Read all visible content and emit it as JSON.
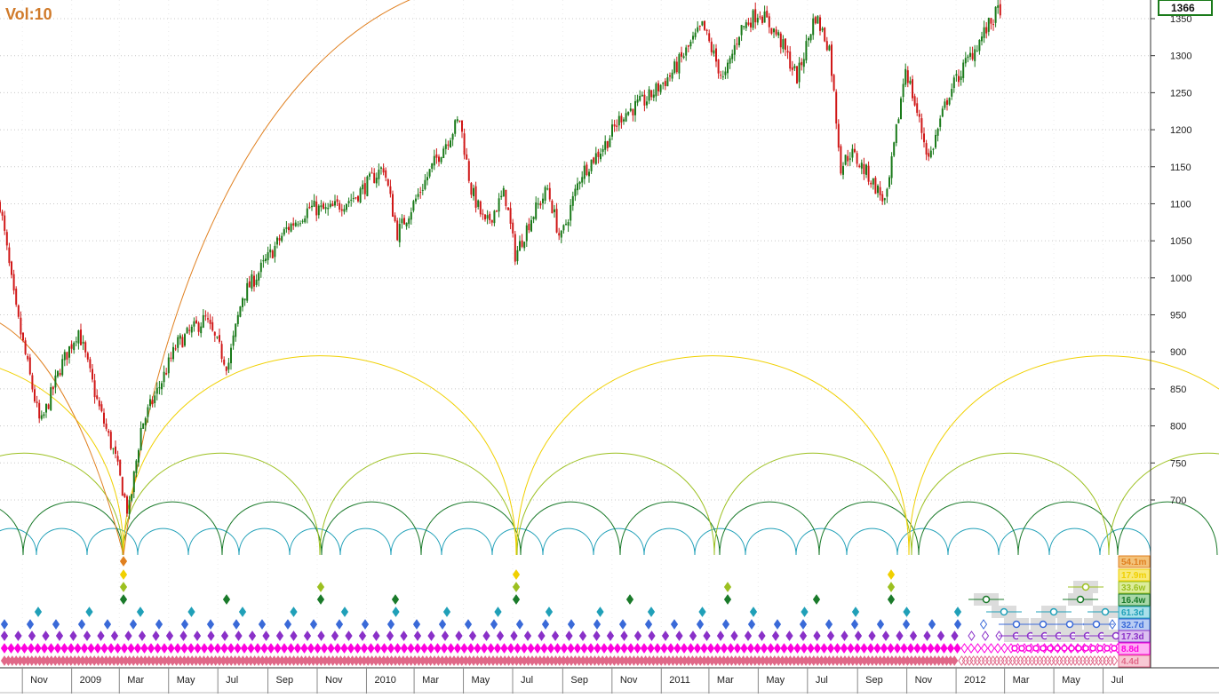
{
  "header": {
    "vol_label": "Vol:10"
  },
  "price_badge": "1366",
  "colors": {
    "up": "#1a7a1a",
    "down": "#d01818",
    "grid": "#c8c8c8",
    "axis": "#333333"
  },
  "cycles": [
    {
      "label": "54.1m",
      "color": "#e08020",
      "bg": "#f3c27a"
    },
    {
      "label": "17.9m",
      "color": "#f0d000",
      "bg": "#f8ea7a"
    },
    {
      "label": "33.6w",
      "color": "#9cc020",
      "bg": "#dcec9c"
    },
    {
      "label": "16.4w",
      "color": "#1a7a2a",
      "bg": "#a8d8a8"
    },
    {
      "label": "61.3d",
      "color": "#20a0b8",
      "bg": "#a8e0ea"
    },
    {
      "label": "32.7d",
      "color": "#3a6ad8",
      "bg": "#b8ccf4"
    },
    {
      "label": "17.3d",
      "color": "#8a30c8",
      "bg": "#dcc0f0"
    },
    {
      "label": "8.8d",
      "color": "#ff00e0",
      "bg": "#ffb0f4"
    },
    {
      "label": "4.4d",
      "color": "#e06888",
      "bg": "#f8c8d4"
    }
  ],
  "chart_data": {
    "type": "candlestick",
    "title": "",
    "xlabel": "",
    "ylabel": "",
    "ylim": [
      650,
      1370
    ],
    "y_ticks": [
      700,
      750,
      800,
      850,
      900,
      950,
      1000,
      1050,
      1100,
      1150,
      1200,
      1250,
      1300,
      1350
    ],
    "x_ticks": [
      "Nov",
      "2009",
      "Mar",
      "May",
      "Jul",
      "Sep",
      "Nov",
      "2010",
      "Mar",
      "May",
      "Jul",
      "Sep",
      "Nov",
      "2011",
      "Mar",
      "May",
      "Jul",
      "Sep",
      "Nov",
      "2012",
      "Mar",
      "May",
      "Jul"
    ],
    "x_range": [
      "2008-10-01",
      "2012-08-20"
    ],
    "last_price": 1366,
    "close_series": {
      "dates": [
        "2008-10-01",
        "2008-10-20",
        "2008-11-20",
        "2008-12-15",
        "2009-01-06",
        "2009-01-30",
        "2009-02-20",
        "2009-03-09",
        "2009-03-25",
        "2009-04-15",
        "2009-05-08",
        "2009-06-12",
        "2009-07-10",
        "2009-07-28",
        "2009-08-25",
        "2009-09-20",
        "2009-10-20",
        "2009-11-10",
        "2009-12-15",
        "2010-01-19",
        "2010-02-05",
        "2010-02-25",
        "2010-03-25",
        "2010-04-23",
        "2010-05-07",
        "2010-05-25",
        "2010-06-18",
        "2010-07-01",
        "2010-07-20",
        "2010-08-10",
        "2010-08-26",
        "2010-09-20",
        "2010-10-20",
        "2010-11-10",
        "2010-12-10",
        "2011-01-10",
        "2011-02-18",
        "2011-03-16",
        "2011-04-05",
        "2011-04-29",
        "2011-05-23",
        "2011-06-15",
        "2011-07-07",
        "2011-07-25",
        "2011-08-08",
        "2011-08-20",
        "2011-09-10",
        "2011-10-03",
        "2011-10-27",
        "2011-11-25",
        "2011-12-20",
        "2012-01-10",
        "2012-02-01",
        "2012-02-22"
      ],
      "values": [
        1100,
        960,
        800,
        880,
        930,
        830,
        760,
        680,
        800,
        850,
        910,
        945,
        880,
        975,
        1020,
        1065,
        1095,
        1090,
        1110,
        1150,
        1060,
        1100,
        1160,
        1215,
        1120,
        1070,
        1115,
        1030,
        1080,
        1120,
        1050,
        1140,
        1180,
        1220,
        1240,
        1275,
        1340,
        1265,
        1335,
        1360,
        1325,
        1270,
        1355,
        1310,
        1150,
        1170,
        1140,
        1100,
        1285,
        1160,
        1250,
        1290,
        1330,
        1366
      ]
    }
  }
}
